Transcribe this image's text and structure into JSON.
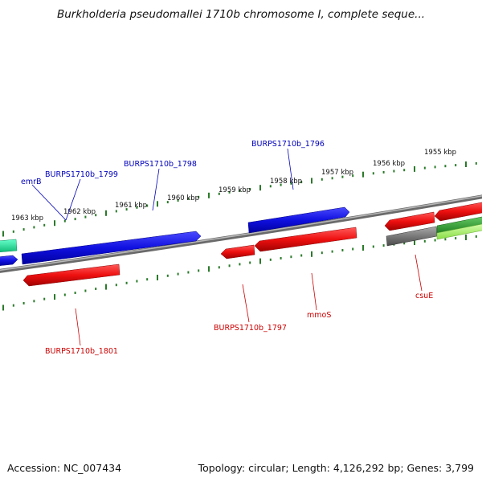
{
  "header": {
    "title": "Burkholderia pseudomallei 1710b chromosome I, complete seque..."
  },
  "footer": {
    "accession": "Accession: NC_007434",
    "summary": "Topology: circular; Length: 4,126,292 bp; Genes: 3,799"
  },
  "ticks": [
    {
      "label": "1955 kbp"
    },
    {
      "label": "1956 kbp"
    },
    {
      "label": "1957 kbp"
    },
    {
      "label": "1958 kbp"
    },
    {
      "label": "1959 kbp"
    },
    {
      "label": "1960 kbp"
    },
    {
      "label": "1961 kbp"
    },
    {
      "label": "1962 kbp"
    },
    {
      "label": "1963 kbp"
    }
  ],
  "gene_labels": [
    {
      "name": "emrB",
      "color": "#0000bb"
    },
    {
      "name": "BURPS1710b_1799",
      "color": "#0000bb"
    },
    {
      "name": "BURPS1710b_1798",
      "color": "#0000bb"
    },
    {
      "name": "BURPS1710b_1796",
      "color": "#0000bb"
    },
    {
      "name": "BURPS1710b_1801",
      "color": "#cc0000"
    },
    {
      "name": "BURPS1710b_1797",
      "color": "#cc0000"
    },
    {
      "name": "mmoS",
      "color": "#cc0000"
    },
    {
      "name": "csuE",
      "color": "#cc0000"
    }
  ],
  "colors": {
    "forward": "#1a1aee",
    "reverse": "#ee1111",
    "backbone": "#8a8a8a",
    "tick": "#2a7a2a",
    "pseudo": "#6e6e6e",
    "other_green": "#2e9e2e",
    "other_lime": "#aef07a",
    "other_teal": "#22dd99"
  }
}
